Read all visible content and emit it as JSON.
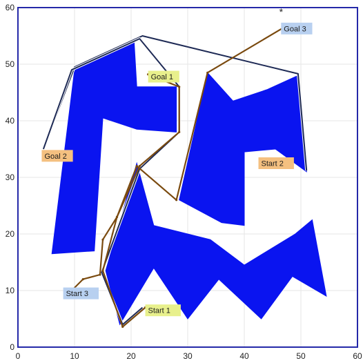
{
  "chart_data": {
    "type": "scatter",
    "title": "",
    "xlabel": "",
    "ylabel": "",
    "xlim": [
      0,
      60
    ],
    "ylim": [
      0,
      60
    ],
    "xticks": [
      "0",
      "10",
      "20",
      "30",
      "40",
      "50",
      "60"
    ],
    "yticks": [
      "0",
      "10",
      "20",
      "30",
      "40",
      "50",
      "60"
    ],
    "grid": true,
    "colors": {
      "obstacle": "#0a14f0",
      "hull": "#1e2a55",
      "path": "#7a4a0f",
      "frame": "#2428a8",
      "grid": "#e6e6e6",
      "label_blue": "#b8d0f0",
      "label_yellow": "#e8f08c",
      "label_orange": "#f4c080"
    },
    "obstacles": [
      {
        "name": "obstacle-1",
        "points": [
          [
            10,
            49
          ],
          [
            20.5,
            54.5
          ],
          [
            21,
            46
          ],
          [
            28,
            46
          ],
          [
            28,
            38
          ],
          [
            21,
            38.5
          ],
          [
            15,
            40.5
          ],
          [
            13.5,
            17
          ],
          [
            6,
            16.5
          ]
        ]
      },
      {
        "name": "obstacle-2",
        "points": [
          [
            33.5,
            48.5
          ],
          [
            38,
            43.5
          ],
          [
            44,
            45.5
          ],
          [
            49.5,
            48
          ],
          [
            51,
            31
          ],
          [
            45.5,
            35
          ],
          [
            40,
            34.5
          ],
          [
            40,
            21.5
          ],
          [
            36,
            22
          ],
          [
            28.5,
            26
          ]
        ]
      },
      {
        "name": "obstacle-3",
        "points": [
          [
            21,
            32.5
          ],
          [
            24,
            21.5
          ],
          [
            34,
            19
          ],
          [
            40,
            14.5
          ],
          [
            49,
            20
          ],
          [
            52,
            22.5
          ],
          [
            54.5,
            9
          ],
          [
            48.5,
            12.5
          ],
          [
            43,
            5
          ],
          [
            35.5,
            12
          ],
          [
            30,
            5
          ],
          [
            24,
            14
          ],
          [
            18,
            4
          ],
          [
            15.5,
            13.5
          ]
        ]
      }
    ],
    "hulls": [
      {
        "name": "hull-1",
        "points": [
          [
            4.5,
            35
          ],
          [
            10,
            49.5
          ],
          [
            22,
            55
          ],
          [
            49.5,
            48.3
          ],
          [
            51,
            31.2
          ]
        ]
      },
      {
        "name": "hull-2",
        "points": [
          [
            4.5,
            35
          ],
          [
            9.5,
            49
          ],
          [
            21.5,
            54.5
          ],
          [
            28.5,
            46
          ],
          [
            28.5,
            38
          ],
          [
            21.5,
            31.5
          ],
          [
            14.8,
            13.2
          ],
          [
            18.5,
            4
          ],
          [
            22,
            7
          ]
        ]
      }
    ],
    "paths": [
      {
        "name": "path-start3-goal1",
        "points": [
          [
            9,
            9.5
          ],
          [
            11.5,
            12
          ],
          [
            14.5,
            12.8
          ],
          [
            15,
            19
          ],
          [
            17.5,
            23
          ],
          [
            21.5,
            32
          ],
          [
            28.5,
            38
          ],
          [
            28.5,
            46
          ],
          [
            23,
            48.2
          ]
        ]
      },
      {
        "name": "path-start1-goal3",
        "points": [
          [
            22.5,
            7
          ],
          [
            18.5,
            3.6
          ],
          [
            15,
            13.5
          ],
          [
            17.5,
            23
          ],
          [
            21,
            32
          ],
          [
            28,
            26
          ],
          [
            33.5,
            48.5
          ],
          [
            47,
            56.5
          ]
        ]
      }
    ],
    "extra_markers": [
      {
        "name": "asterisk-marker",
        "x": 46.5,
        "y": 59.5
      }
    ],
    "labels": [
      {
        "name": "start-1-label",
        "text": "Start 1",
        "x": 22.5,
        "y": 6.5,
        "color": "yellow"
      },
      {
        "name": "start-2-label",
        "text": "Start 2",
        "x": 42.5,
        "y": 32.5,
        "color": "orange"
      },
      {
        "name": "start-3-label",
        "text": "Start 3",
        "x": 8,
        "y": 9.5,
        "color": "blue"
      },
      {
        "name": "goal-1-label",
        "text": "Goal 1",
        "x": 23,
        "y": 47.8,
        "color": "yellow"
      },
      {
        "name": "goal-2-label",
        "text": "Goal 2",
        "x": 4.2,
        "y": 33.8,
        "color": "orange"
      },
      {
        "name": "goal-3-label",
        "text": "Goal 3",
        "x": 46.5,
        "y": 56.3,
        "color": "blue"
      }
    ]
  }
}
